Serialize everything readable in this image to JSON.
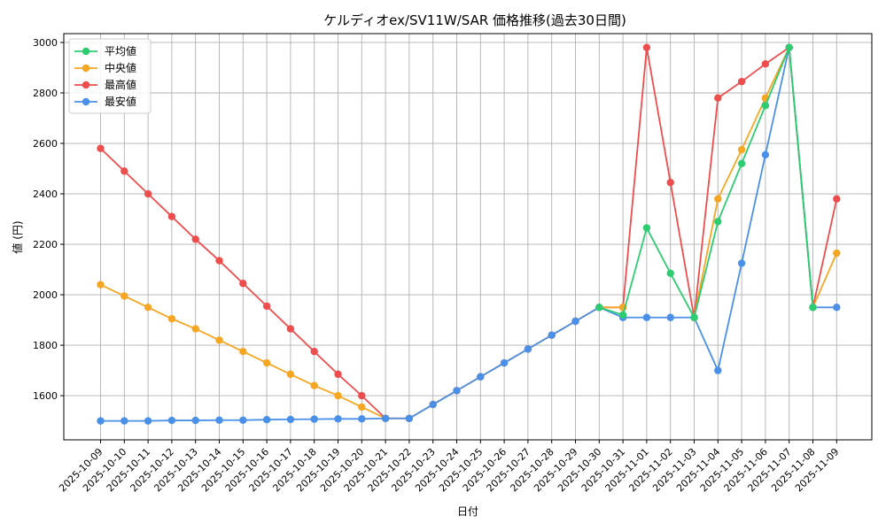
{
  "chart_data": {
    "type": "line",
    "title": "ケルディオex/SV11W/SAR 価格推移(過去30日間)",
    "xlabel": "日付",
    "ylabel": "値 (円)",
    "ylim": [
      1425,
      3035
    ],
    "yticks": [
      1600,
      1800,
      2000,
      2200,
      2400,
      2600,
      2800,
      3000
    ],
    "grid": true,
    "legend_position": "top-left",
    "categories": [
      "2025-10-09",
      "2025-10-10",
      "2025-10-11",
      "2025-10-12",
      "2025-10-13",
      "2025-10-14",
      "2025-10-15",
      "2025-10-16",
      "2025-10-17",
      "2025-10-18",
      "2025-10-19",
      "2025-10-20",
      "2025-10-21",
      "2025-10-22",
      "2025-10-23",
      "2025-10-24",
      "2025-10-25",
      "2025-10-26",
      "2025-10-27",
      "2025-10-28",
      "2025-10-29",
      "2025-10-30",
      "2025-10-31",
      "2025-11-01",
      "2025-11-02",
      "2025-11-03",
      "2025-11-04",
      "2025-11-05",
      "2025-11-06",
      "2025-11-07",
      "2025-11-08",
      "2025-11-09"
    ],
    "series": [
      {
        "name": "平均値",
        "color": "#2ecc71",
        "values": [
          null,
          null,
          null,
          null,
          null,
          null,
          null,
          null,
          null,
          null,
          null,
          null,
          null,
          null,
          null,
          null,
          null,
          null,
          null,
          null,
          null,
          1950,
          1920,
          2265,
          2085,
          1910,
          2290,
          2520,
          2750,
          2980,
          1950,
          null
        ]
      },
      {
        "name": "中央値",
        "color": "#f5a623",
        "values": [
          2040,
          1995,
          1950,
          1905,
          1865,
          1820,
          1775,
          1730,
          1685,
          1640,
          1600,
          1555,
          1510,
          1510,
          1565,
          1620,
          1675,
          1730,
          1785,
          1840,
          1895,
          1950,
          1950,
          null,
          null,
          1910,
          2380,
          2575,
          2780,
          2980,
          1950,
          2165
        ]
      },
      {
        "name": "最高値",
        "color": "#ee4d4d",
        "values": [
          2580,
          2490,
          2400,
          2310,
          2220,
          2135,
          2045,
          1955,
          1865,
          1775,
          1685,
          1600,
          1510,
          1510,
          1565,
          1620,
          1675,
          1730,
          1785,
          1840,
          1895,
          1950,
          1950,
          2980,
          2445,
          1910,
          2780,
          2845,
          2915,
          2980,
          1950,
          2380
        ]
      },
      {
        "name": "最安値",
        "color": "#4a90e8",
        "values": [
          1500,
          1500,
          1500,
          1502,
          1502,
          1503,
          1503,
          1505,
          1506,
          1507,
          1508,
          1508,
          1510,
          1510,
          1565,
          1620,
          1675,
          1730,
          1785,
          1840,
          1895,
          1950,
          1910,
          1910,
          1910,
          1910,
          1700,
          2125,
          2555,
          2980,
          1950,
          1950
        ]
      }
    ]
  }
}
